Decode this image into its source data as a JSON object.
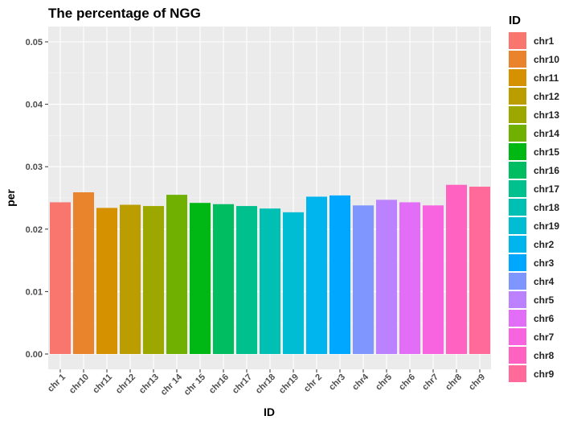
{
  "chart_data": {
    "type": "bar",
    "title": "The percentage of NGG",
    "xlabel": "ID",
    "ylabel": "per",
    "ylim": [
      0,
      0.0525
    ],
    "yticks": [
      "0.00",
      "0.01",
      "0.02",
      "0.03",
      "0.04",
      "0.05"
    ],
    "categories": [
      "chr1",
      "chr10",
      "chr11",
      "chr12",
      "chr13",
      "chr14",
      "chr15",
      "chr16",
      "chr17",
      "chr18",
      "chr19",
      "chr2",
      "chr3",
      "chr4",
      "chr5",
      "chr6",
      "chr7",
      "chr8",
      "chr9"
    ],
    "xtick_labels": [
      "chr 1",
      "chr10",
      "chr11",
      "chr12",
      "chr13",
      "chr 14",
      "chr 15",
      "chr16",
      "chr17",
      "chr18",
      "chr19",
      "chr 2",
      "chr3",
      "chr4",
      "chr5",
      "chr6",
      "chr7",
      "chr8",
      "chr9"
    ],
    "values": [
      0.0243,
      0.0259,
      0.0234,
      0.0239,
      0.0237,
      0.0255,
      0.0242,
      0.024,
      0.0237,
      0.0233,
      0.0227,
      0.0252,
      0.0254,
      0.0238,
      0.0247,
      0.0243,
      0.0238,
      0.0271,
      0.0268
    ],
    "colors": [
      "#F8766D",
      "#E9842C",
      "#D69100",
      "#BC9D00",
      "#9CA700",
      "#6FB000",
      "#00B813",
      "#00BD61",
      "#00C08E",
      "#00C0B4",
      "#00BDD4",
      "#00B5EE",
      "#00A7FF",
      "#7F96FF",
      "#BC81FF",
      "#E26EF7",
      "#F863DF",
      "#FF62C0",
      "#FF6A9A"
    ],
    "legend": {
      "title": "ID",
      "position": "right"
    },
    "grid": true,
    "panel_background": "#EBEBEB"
  }
}
